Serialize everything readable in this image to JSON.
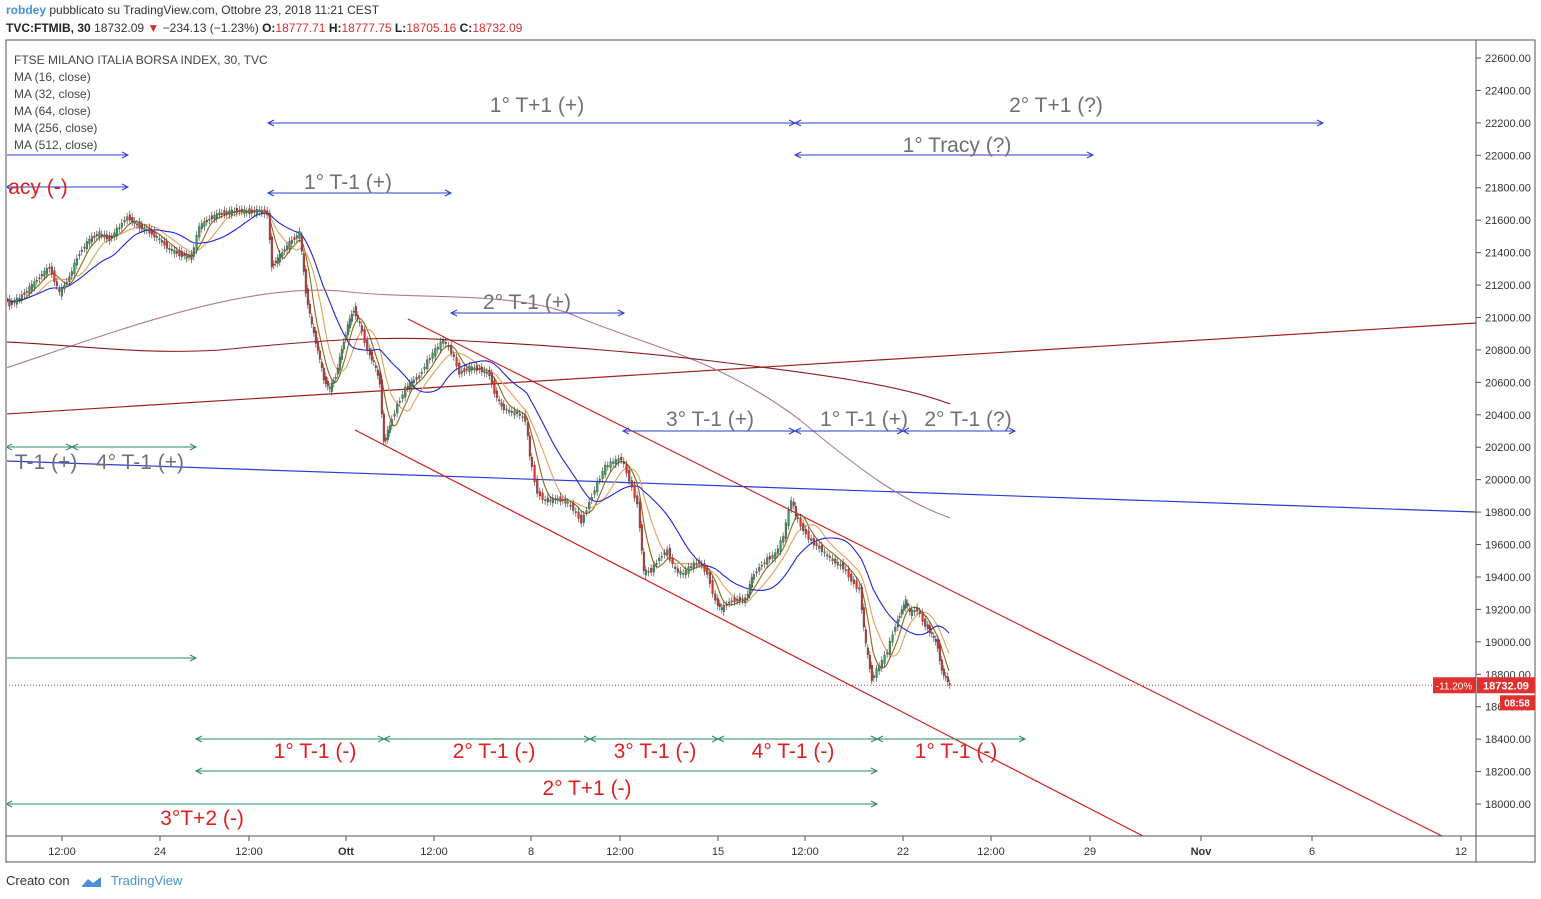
{
  "header": {
    "author": "robdey",
    "published": "pubblicato su TradingView.com, Ottobre 23, 2018 11:21 CEST",
    "symbol": "TVC:FTMIB, 30",
    "last": "18732.09",
    "change": "−234.13 (−1.23%)",
    "o_label": "O:",
    "o_val": "18777.71",
    "h_label": "H:",
    "h_val": "18777.75",
    "l_label": "L:",
    "l_val": "18705.16",
    "c_label": "C:",
    "c_val": "18732.09"
  },
  "legend": {
    "title": "FTSE MILANO ITALIA BORSA INDEX, 30, TVC",
    "indicators": [
      "MA (16, close)",
      "MA (32, close)",
      "MA (64, close)",
      "MA (256, close)",
      "MA (512, close)"
    ]
  },
  "chart_data": {
    "type": "candlestick",
    "title": "FTSE MILANO ITALIA BORSA INDEX, 30, TVC",
    "y_axis": {
      "min": 17900,
      "max": 22650,
      "ticks": [
        22600,
        22400,
        22200,
        22000,
        21800,
        21600,
        21400,
        21200,
        21000,
        20800,
        20600,
        20400,
        20200,
        20000,
        19800,
        19600,
        19400,
        19200,
        19000,
        18800,
        18600,
        18400,
        18200,
        18000
      ],
      "tick_labels": [
        "22600.00",
        "22400.00",
        "22200.00",
        "22000.00",
        "21800.00",
        "21600.00",
        "21400.00",
        "21200.00",
        "21000.00",
        "20800.00",
        "20600.00",
        "20400.00",
        "20200.00",
        "20000.00",
        "19800.00",
        "19600.00",
        "19400.00",
        "19200.00",
        "19000.00",
        "18800.00",
        "18600.00",
        "18400.00",
        "18200.00",
        "18000.00"
      ]
    },
    "x_axis": {
      "tick_labels": [
        "12:00",
        "24",
        "12:00",
        "Ott",
        "12:00",
        "8",
        "12:00",
        "15",
        "12:00",
        "22",
        "12:00",
        "29",
        "Nov",
        "6",
        "12"
      ],
      "bold_labels": [
        "Ott",
        "Nov"
      ]
    },
    "close_path": [
      [
        0,
        21150
      ],
      [
        10,
        21080
      ],
      [
        20,
        21120
      ],
      [
        30,
        21180
      ],
      [
        40,
        21250
      ],
      [
        50,
        21310
      ],
      [
        60,
        21150
      ],
      [
        70,
        21250
      ],
      [
        80,
        21400
      ],
      [
        90,
        21480
      ],
      [
        100,
        21520
      ],
      [
        110,
        21480
      ],
      [
        120,
        21560
      ],
      [
        128,
        21620
      ],
      [
        140,
        21560
      ],
      [
        150,
        21530
      ],
      [
        160,
        21480
      ],
      [
        170,
        21420
      ],
      [
        180,
        21390
      ],
      [
        192,
        21370
      ],
      [
        200,
        21560
      ],
      [
        210,
        21610
      ],
      [
        220,
        21640
      ],
      [
        230,
        21650
      ],
      [
        240,
        21660
      ],
      [
        250,
        21650
      ],
      [
        260,
        21660
      ],
      [
        268,
        21640
      ],
      [
        272,
        21320
      ],
      [
        278,
        21360
      ],
      [
        290,
        21460
      ],
      [
        300,
        21520
      ],
      [
        306,
        21160
      ],
      [
        312,
        20950
      ],
      [
        318,
        20800
      ],
      [
        324,
        20620
      ],
      [
        330,
        20560
      ],
      [
        336,
        20640
      ],
      [
        342,
        20800
      ],
      [
        348,
        20950
      ],
      [
        354,
        21050
      ],
      [
        360,
        20960
      ],
      [
        368,
        20800
      ],
      [
        374,
        20720
      ],
      [
        380,
        20600
      ],
      [
        384,
        20230
      ],
      [
        390,
        20330
      ],
      [
        398,
        20460
      ],
      [
        406,
        20560
      ],
      [
        412,
        20600
      ],
      [
        420,
        20640
      ],
      [
        428,
        20730
      ],
      [
        436,
        20800
      ],
      [
        444,
        20860
      ],
      [
        452,
        20790
      ],
      [
        460,
        20660
      ],
      [
        470,
        20690
      ],
      [
        480,
        20680
      ],
      [
        490,
        20650
      ],
      [
        495,
        20540
      ],
      [
        502,
        20450
      ],
      [
        510,
        20420
      ],
      [
        518,
        20410
      ],
      [
        526,
        20370
      ],
      [
        530,
        20150
      ],
      [
        538,
        19920
      ],
      [
        546,
        19870
      ],
      [
        556,
        19880
      ],
      [
        566,
        19870
      ],
      [
        574,
        19820
      ],
      [
        582,
        19740
      ],
      [
        590,
        19860
      ],
      [
        598,
        19980
      ],
      [
        606,
        20080
      ],
      [
        614,
        20110
      ],
      [
        622,
        20130
      ],
      [
        630,
        20000
      ],
      [
        638,
        19850
      ],
      [
        644,
        19430
      ],
      [
        652,
        19440
      ],
      [
        660,
        19520
      ],
      [
        668,
        19560
      ],
      [
        676,
        19440
      ],
      [
        684,
        19420
      ],
      [
        692,
        19470
      ],
      [
        700,
        19490
      ],
      [
        708,
        19420
      ],
      [
        716,
        19250
      ],
      [
        722,
        19200
      ],
      [
        730,
        19250
      ],
      [
        738,
        19260
      ],
      [
        746,
        19260
      ],
      [
        752,
        19390
      ],
      [
        760,
        19460
      ],
      [
        768,
        19510
      ],
      [
        776,
        19540
      ],
      [
        784,
        19650
      ],
      [
        792,
        19880
      ],
      [
        796,
        19780
      ],
      [
        804,
        19690
      ],
      [
        812,
        19620
      ],
      [
        820,
        19580
      ],
      [
        828,
        19530
      ],
      [
        836,
        19490
      ],
      [
        844,
        19460
      ],
      [
        852,
        19380
      ],
      [
        860,
        19320
      ],
      [
        866,
        18980
      ],
      [
        872,
        18770
      ],
      [
        880,
        18850
      ],
      [
        888,
        18940
      ],
      [
        896,
        19100
      ],
      [
        902,
        19200
      ],
      [
        906,
        19250
      ],
      [
        910,
        19180
      ],
      [
        918,
        19200
      ],
      [
        926,
        19100
      ],
      [
        932,
        19050
      ],
      [
        938,
        18970
      ],
      [
        942,
        18820
      ],
      [
        946,
        18780
      ],
      [
        950,
        18732
      ]
    ],
    "moving_averages": [
      {
        "name": "MA (16, close)",
        "color": "#8b6914"
      },
      {
        "name": "MA (32, close)",
        "color": "#e0a060"
      },
      {
        "name": "MA (64, close)",
        "color": "#2222dd"
      },
      {
        "name": "MA (256, close)",
        "color": "#b07a8e"
      },
      {
        "name": "MA (512, close)",
        "color": "#8b1a1a"
      }
    ],
    "current_price_label": "18732.09",
    "current_change_label": "-11.20%",
    "countdown_label": "08:58",
    "annotations": [
      {
        "text": "1° T+1 (+)",
        "color": "#707070",
        "arrow_color": "#2a3bd6"
      },
      {
        "text": "2° T+1 (?)",
        "color": "#707070",
        "arrow_color": "#2a3bd6"
      },
      {
        "text": "1° Tracy (?)",
        "color": "#707070",
        "arrow_color": "#2a3bd6"
      },
      {
        "text": "1° T-1 (+)",
        "color": "#707070",
        "arrow_color": "#2a3bd6"
      },
      {
        "text": "acy (-)",
        "color": "#e02020",
        "arrow_color": "#2a3bd6"
      },
      {
        "text": "2° T-1 (+)",
        "color": "#707070",
        "arrow_color": "#2a3bd6"
      },
      {
        "text": "3° T-1 (+)",
        "color": "#707070",
        "arrow_color": "#2a3bd6"
      },
      {
        "text": "1° T-1 (+)",
        "color": "#707070",
        "arrow_color": "#2a3bd6"
      },
      {
        "text": "2° T-1 (?)",
        "color": "#707070",
        "arrow_color": "#2a3bd6"
      },
      {
        "text": "T-1 (+)",
        "color": "#707070",
        "arrow_color": "#2a8a6a"
      },
      {
        "text": "4° T-1 (+)",
        "color": "#707070",
        "arrow_color": "#2a8a6a"
      },
      {
        "text": "1° T-1 (-)",
        "color": "#e02020",
        "arrow_color": "#2a8a6a"
      },
      {
        "text": "2° T-1 (-)",
        "color": "#e02020",
        "arrow_color": "#2a8a6a"
      },
      {
        "text": "3° T-1 (-)",
        "color": "#e02020",
        "arrow_color": "#2a8a6a"
      },
      {
        "text": "4° T-1 (-)",
        "color": "#e02020",
        "arrow_color": "#2a8a6a"
      },
      {
        "text": "1° T-1 (-)",
        "color": "#e02020",
        "arrow_color": "#2a8a6a"
      },
      {
        "text": "2° T+1 (-)",
        "color": "#e02020",
        "arrow_color": "#2a8a6a"
      },
      {
        "text": "3°T+2 (-)",
        "color": "#e02020",
        "arrow_color": "#2a8a6a"
      }
    ],
    "colors": {
      "up_candle": "#3a9a5a",
      "down_candle": "#e03030",
      "channel": "#d02020",
      "trend_red": "#a02020",
      "trend_blue": "#2a3bd6",
      "price_line": "#e03030"
    }
  },
  "footer": {
    "created_with": "Creato con",
    "brand": "TradingView"
  }
}
